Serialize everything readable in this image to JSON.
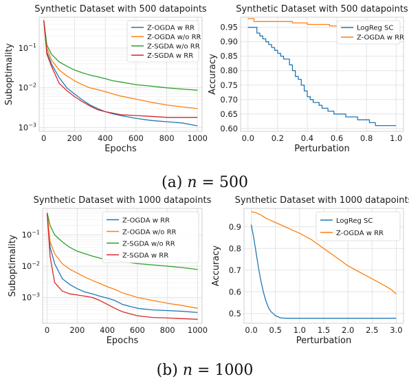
{
  "captions": [
    {
      "label": "(a)",
      "var": "n",
      "eq": "=",
      "value": "500"
    },
    {
      "label": "(b)",
      "var": "n",
      "eq": "=",
      "value": "1000"
    }
  ],
  "colors": {
    "blue": "#1f77b4",
    "orange": "#ff7f0e",
    "green": "#2ca02c",
    "red": "#d62728"
  },
  "chart_data": [
    {
      "id": "a-subopt",
      "type": "line",
      "title": "Synthetic Dataset with 500 datapoints",
      "xlabel": "Epochs",
      "ylabel": "Suboptimality",
      "xlim": [
        -30,
        1030
      ],
      "ylim": [
        0.0008,
        0.6
      ],
      "yscale": "log",
      "xticks": [
        0,
        200,
        400,
        600,
        800,
        1000
      ],
      "yticks": [
        {
          "v": 0.001,
          "base": "10",
          "exp": "−3"
        },
        {
          "v": 0.01,
          "base": "10",
          "exp": "−2"
        },
        {
          "v": 0.1,
          "base": "10",
          "exp": "−1"
        }
      ],
      "grid": true,
      "legend": "top-right",
      "series": [
        {
          "name": "Z-OGDA w RR",
          "color": "#1f77b4",
          "x": [
            0,
            20,
            50,
            100,
            150,
            200,
            250,
            300,
            350,
            400,
            450,
            500,
            600,
            700,
            800,
            900,
            1000
          ],
          "y": [
            0.5,
            0.08,
            0.04,
            0.018,
            0.01,
            0.007,
            0.005,
            0.0037,
            0.003,
            0.0025,
            0.0022,
            0.002,
            0.0017,
            0.0015,
            0.0014,
            0.0013,
            0.0011
          ]
        },
        {
          "name": "Z-OGDA w/o RR",
          "color": "#ff7f0e",
          "x": [
            0,
            20,
            50,
            100,
            150,
            200,
            250,
            300,
            350,
            400,
            450,
            500,
            600,
            700,
            800,
            900,
            1000
          ],
          "y": [
            0.5,
            0.1,
            0.05,
            0.028,
            0.02,
            0.015,
            0.012,
            0.01,
            0.009,
            0.008,
            0.007,
            0.0062,
            0.0052,
            0.0043,
            0.0037,
            0.0033,
            0.003
          ]
        },
        {
          "name": "Z-SGDA w/o RR",
          "color": "#2ca02c",
          "x": [
            0,
            20,
            50,
            100,
            150,
            200,
            250,
            300,
            350,
            400,
            450,
            500,
            600,
            700,
            800,
            900,
            1000
          ],
          "y": [
            0.5,
            0.12,
            0.07,
            0.045,
            0.035,
            0.028,
            0.024,
            0.021,
            0.019,
            0.017,
            0.015,
            0.014,
            0.012,
            0.011,
            0.01,
            0.0093,
            0.0087
          ]
        },
        {
          "name": "Z-SGDA w RR",
          "color": "#d62728",
          "x": [
            0,
            20,
            50,
            100,
            150,
            200,
            250,
            300,
            350,
            400,
            450,
            500,
            600,
            700,
            800,
            900,
            1000
          ],
          "y": [
            0.5,
            0.07,
            0.035,
            0.013,
            0.0085,
            0.006,
            0.0045,
            0.0035,
            0.0028,
            0.0025,
            0.0023,
            0.0021,
            0.002,
            0.0019,
            0.0018,
            0.0018,
            0.0018
          ]
        }
      ]
    },
    {
      "id": "a-acc",
      "type": "line",
      "step": true,
      "title": "Synthetic Dataset with 500 datapoints",
      "xlabel": "Perturbation",
      "ylabel": "Accuracy",
      "xlim": [
        -0.05,
        1.05
      ],
      "ylim": [
        0.59,
        0.985
      ],
      "xticks": [
        0.0,
        0.2,
        0.4,
        0.6,
        0.8,
        1.0
      ],
      "xtick_labels": [
        "0.0",
        "0.2",
        "0.4",
        "0.6",
        "0.8",
        "1.0"
      ],
      "yticks": [
        0.6,
        0.65,
        0.7,
        0.75,
        0.8,
        0.85,
        0.9,
        0.95
      ],
      "ytick_labels": [
        "0.60",
        "0.65",
        "0.70",
        "0.75",
        "0.80",
        "0.85",
        "0.90",
        "0.95"
      ],
      "grid": true,
      "legend": "top-right",
      "series": [
        {
          "name": "LogReg SC",
          "color": "#1f77b4",
          "x": [
            0,
            0.04,
            0.06,
            0.08,
            0.1,
            0.12,
            0.14,
            0.16,
            0.18,
            0.2,
            0.22,
            0.24,
            0.26,
            0.28,
            0.3,
            0.32,
            0.34,
            0.36,
            0.38,
            0.4,
            0.42,
            0.44,
            0.46,
            0.48,
            0.5,
            0.52,
            0.54,
            0.56,
            0.58,
            0.62,
            0.66,
            0.7,
            0.74,
            0.78,
            0.82,
            0.86,
            0.9,
            1.0
          ],
          "y": [
            0.95,
            0.95,
            0.93,
            0.92,
            0.91,
            0.9,
            0.89,
            0.88,
            0.87,
            0.86,
            0.85,
            0.84,
            0.84,
            0.82,
            0.8,
            0.78,
            0.77,
            0.75,
            0.73,
            0.71,
            0.7,
            0.69,
            0.69,
            0.68,
            0.67,
            0.67,
            0.66,
            0.66,
            0.65,
            0.65,
            0.64,
            0.64,
            0.63,
            0.63,
            0.62,
            0.61,
            0.61,
            0.61
          ]
        },
        {
          "name": "Z-OGDA w RR",
          "color": "#ff7f0e",
          "x": [
            0,
            0.04,
            0.12,
            0.2,
            0.3,
            0.4,
            0.48,
            0.55,
            0.62,
            0.7,
            0.75,
            0.8,
            0.85,
            0.9,
            0.96,
            0.98,
            1.0
          ],
          "y": [
            0.98,
            0.97,
            0.97,
            0.97,
            0.965,
            0.96,
            0.96,
            0.955,
            0.955,
            0.95,
            0.945,
            0.945,
            0.94,
            0.935,
            0.93,
            0.91,
            0.91
          ]
        }
      ]
    },
    {
      "id": "b-subopt",
      "type": "line",
      "title": "Synthetic Dataset with 1000 datapoints",
      "xlabel": "Epochs",
      "ylabel": "Suboptimality",
      "xlim": [
        -30,
        1030
      ],
      "ylim": [
        0.00015,
        0.7
      ],
      "yscale": "log",
      "xticks": [
        0,
        200,
        400,
        600,
        800,
        1000
      ],
      "yticks": [
        {
          "v": 0.001,
          "base": "10",
          "exp": "−3"
        },
        {
          "v": 0.01,
          "base": "10",
          "exp": "−2"
        },
        {
          "v": 0.1,
          "base": "10",
          "exp": "−1"
        }
      ],
      "grid": true,
      "legend": "top-right",
      "series": [
        {
          "name": "Z-OGDA w RR",
          "color": "#1f77b4",
          "x": [
            0,
            20,
            50,
            100,
            150,
            200,
            250,
            300,
            350,
            400,
            450,
            500,
            600,
            700,
            800,
            900,
            1000
          ],
          "y": [
            0.5,
            0.04,
            0.012,
            0.004,
            0.0026,
            0.0019,
            0.0015,
            0.0013,
            0.0011,
            0.00095,
            0.0008,
            0.0006,
            0.00045,
            0.0004,
            0.00038,
            0.00036,
            0.00033
          ]
        },
        {
          "name": "Z-OGDA w/o RR",
          "color": "#ff7f0e",
          "x": [
            0,
            20,
            50,
            100,
            150,
            200,
            250,
            300,
            350,
            400,
            450,
            500,
            600,
            700,
            800,
            900,
            1000
          ],
          "y": [
            0.5,
            0.06,
            0.025,
            0.012,
            0.008,
            0.006,
            0.0045,
            0.0035,
            0.0028,
            0.0022,
            0.0018,
            0.0014,
            0.001,
            0.0008,
            0.00065,
            0.00055,
            0.00045
          ]
        },
        {
          "name": "Z-SGDA w/o RR",
          "color": "#2ca02c",
          "x": [
            0,
            20,
            50,
            100,
            150,
            200,
            250,
            300,
            350,
            400,
            450,
            500,
            600,
            700,
            800,
            900,
            1000
          ],
          "y": [
            0.5,
            0.2,
            0.1,
            0.06,
            0.04,
            0.03,
            0.025,
            0.021,
            0.018,
            0.016,
            0.015,
            0.014,
            0.012,
            0.011,
            0.01,
            0.009,
            0.0078
          ]
        },
        {
          "name": "Z-SGDA w RR",
          "color": "#d62728",
          "x": [
            0,
            20,
            50,
            100,
            150,
            200,
            250,
            300,
            350,
            400,
            450,
            500,
            600,
            700,
            800,
            900,
            1000
          ],
          "y": [
            0.5,
            0.02,
            0.003,
            0.0016,
            0.0013,
            0.0012,
            0.0011,
            0.001,
            0.0008,
            0.0006,
            0.00045,
            0.00035,
            0.00026,
            0.00023,
            0.00022,
            0.00021,
            0.0002
          ]
        }
      ]
    },
    {
      "id": "b-acc",
      "type": "line",
      "title": "Synthetic Dataset with 1000 datapoints",
      "xlabel": "Perturbation",
      "ylabel": "Accuracy",
      "xlim": [
        -0.15,
        3.15
      ],
      "ylim": [
        0.455,
        0.985
      ],
      "xticks": [
        0,
        0.5,
        1,
        1.5,
        2,
        2.5,
        3
      ],
      "xtick_labels": [
        "0.0",
        "0.5",
        "1.0",
        "1.5",
        "2.0",
        "2.5",
        "3.0"
      ],
      "yticks": [
        0.5,
        0.6,
        0.7,
        0.8,
        0.9
      ],
      "ytick_labels": [
        "0.5",
        "0.6",
        "0.7",
        "0.8",
        "0.9"
      ],
      "grid": true,
      "legend": "top-right",
      "series": [
        {
          "name": "LogReg SC",
          "color": "#1f77b4",
          "x": [
            0,
            0.05,
            0.1,
            0.15,
            0.2,
            0.25,
            0.3,
            0.35,
            0.4,
            0.45,
            0.5,
            0.55,
            0.6,
            0.7,
            1.0,
            1.5,
            2.0,
            2.5,
            3.0
          ],
          "y": [
            0.91,
            0.85,
            0.78,
            0.71,
            0.65,
            0.6,
            0.56,
            0.53,
            0.51,
            0.5,
            0.49,
            0.485,
            0.48,
            0.478,
            0.478,
            0.478,
            0.478,
            0.478,
            0.478
          ]
        },
        {
          "name": "Z-OGDA w RR",
          "color": "#ff7f0e",
          "x": [
            0,
            0.1,
            0.2,
            0.3,
            0.5,
            0.75,
            1.0,
            1.25,
            1.5,
            1.75,
            2.0,
            2.25,
            2.5,
            2.75,
            2.9,
            3.0
          ],
          "y": [
            0.97,
            0.965,
            0.955,
            0.94,
            0.92,
            0.895,
            0.87,
            0.84,
            0.8,
            0.76,
            0.72,
            0.69,
            0.66,
            0.63,
            0.61,
            0.59
          ]
        }
      ]
    }
  ]
}
